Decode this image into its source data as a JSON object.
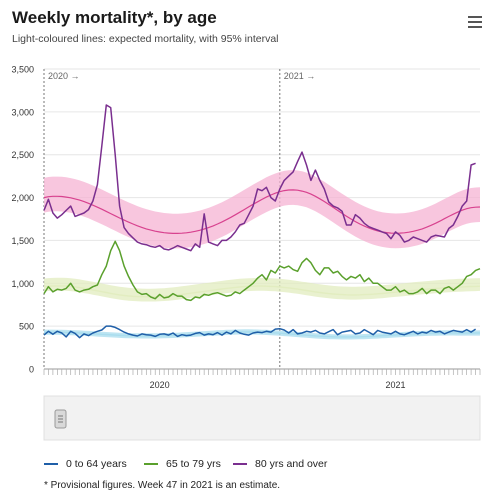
{
  "header": {
    "title": "Weekly mortality*, by age",
    "subtitle": "Light-coloured lines: expected mortality, with 95% interval",
    "menu_icon": "hamburger-menu-icon"
  },
  "footnote": "* Provisional figures. Week 47 in 2021 is an estimate.",
  "chart_data": {
    "type": "line",
    "x_unit": "week",
    "x_range": [
      1,
      99
    ],
    "period_markers": [
      {
        "label": "2020 →",
        "week": 1
      },
      {
        "label": "2021 →",
        "week": 54
      }
    ],
    "x_category_labels": [
      {
        "label": "2020",
        "center_week": 27
      },
      {
        "label": "2021",
        "center_week": 80
      }
    ],
    "y_ticks": [
      0,
      500,
      1000,
      1500,
      2000,
      2500,
      3000,
      3500
    ],
    "y_tick_labels": [
      "0",
      "500",
      "1,000",
      "1,500",
      "2,000",
      "2,500",
      "3,000",
      "3,500"
    ],
    "ylim": [
      0,
      3500
    ],
    "grid": true,
    "legend_position": "bottom",
    "series": [
      {
        "name": "0 to 64 years",
        "color": "#1f5fa8",
        "observed_start_week": 1,
        "observed": [
          395,
          440,
          405,
          440,
          420,
          375,
          440,
          415,
          365,
          410,
          390,
          420,
          440,
          455,
          500,
          500,
          485,
          460,
          430,
          410,
          395,
          385,
          410,
          400,
          395,
          380,
          405,
          410,
          395,
          420,
          380,
          400,
          390,
          395,
          415,
          425,
          395,
          410,
          400,
          425,
          395,
          430,
          410,
          450,
          420,
          405,
          395,
          420,
          430,
          425,
          440,
          430,
          465,
          470,
          455,
          420,
          460,
          410,
          420,
          440,
          430,
          450,
          420,
          410,
          435,
          460,
          400,
          430,
          440,
          450,
          410,
          420,
          460,
          430,
          400,
          450,
          430,
          420,
          410,
          440,
          410,
          400,
          420,
          440,
          410,
          430,
          420,
          450,
          430,
          440,
          410,
          430,
          450,
          440,
          430,
          460,
          430,
          465
        ],
        "expected_start_week": 1,
        "expected": [
          430,
          430,
          430,
          429,
          428,
          426,
          424,
          422,
          420,
          417,
          414,
          411,
          408,
          405,
          402,
          399,
          396,
          393,
          391,
          389,
          388,
          387,
          386,
          386,
          386,
          386,
          387,
          388,
          390,
          392,
          394,
          397,
          400,
          403,
          406,
          409,
          412,
          415,
          418,
          421,
          424,
          427,
          429,
          431,
          432,
          433,
          433,
          432,
          431,
          429,
          427,
          424,
          421,
          418,
          414,
          410,
          406,
          402,
          398,
          394,
          390,
          386,
          383,
          380,
          378,
          376,
          375,
          374,
          374,
          374,
          375,
          376,
          378,
          380,
          382,
          385,
          388,
          391,
          394,
          397,
          400,
          403,
          406,
          409,
          412,
          414,
          416,
          418,
          419,
          420,
          421,
          421,
          421,
          420,
          420,
          420,
          420,
          420,
          420
        ],
        "band_low_offset": 30,
        "band_high_offset": 30,
        "band_color": "#a8dced"
      },
      {
        "name": "65 to 79 yrs",
        "color": "#5aa02c",
        "observed_start_week": 1,
        "observed": [
          880,
          960,
          900,
          930,
          920,
          940,
          1000,
          920,
          900,
          920,
          930,
          960,
          980,
          1100,
          1200,
          1380,
          1490,
          1380,
          1200,
          1080,
          980,
          900,
          870,
          880,
          840,
          820,
          870,
          830,
          840,
          880,
          850,
          850,
          810,
          800,
          840,
          830,
          870,
          860,
          880,
          890,
          870,
          850,
          860,
          900,
          880,
          920,
          960,
          1000,
          1060,
          1100,
          1040,
          1150,
          1120,
          1200,
          1180,
          1200,
          1160,
          1140,
          1240,
          1290,
          1240,
          1150,
          1100,
          1180,
          1180,
          1120,
          1140,
          1080,
          1040,
          1080,
          1060,
          1100,
          1020,
          1060,
          1000,
          1000,
          960,
          920,
          920,
          960,
          900,
          920,
          880,
          880,
          900,
          940,
          880,
          920,
          920,
          880,
          940,
          960,
          920,
          960,
          1000,
          1080,
          1100,
          1150,
          1170
        ],
        "expected_start_week": 1,
        "expected": [
          960,
          965,
          968,
          970,
          970,
          968,
          964,
          958,
          950,
          941,
          932,
          922,
          912,
          902,
          892,
          882,
          873,
          865,
          858,
          852,
          848,
          845,
          843,
          842,
          842,
          843,
          845,
          848,
          852,
          857,
          863,
          870,
          877,
          884,
          891,
          898,
          905,
          912,
          919,
          926,
          933,
          940,
          946,
          952,
          957,
          961,
          964,
          966,
          967,
          967,
          966,
          964,
          961,
          957,
          952,
          946,
          939,
          932,
          924,
          916,
          908,
          900,
          893,
          886,
          880,
          875,
          871,
          868,
          866,
          865,
          865,
          866,
          868,
          870,
          873,
          877,
          881,
          886,
          891,
          896,
          901,
          906,
          911,
          916,
          921,
          926,
          931,
          935,
          939,
          943,
          947,
          950,
          953,
          956,
          958,
          960,
          962,
          964,
          966
        ],
        "band_low_offset": 55,
        "band_high_offset": 95,
        "band_color": "#e2ecbf"
      },
      {
        "name": "80 yrs and over",
        "color": "#7a2f8f",
        "observed_start_week": 1,
        "observed": [
          1850,
          1980,
          1820,
          1760,
          1800,
          1850,
          1900,
          1780,
          1800,
          1820,
          1860,
          1960,
          2150,
          2600,
          3080,
          3050,
          2500,
          1900,
          1650,
          1580,
          1530,
          1480,
          1460,
          1450,
          1430,
          1420,
          1440,
          1400,
          1390,
          1410,
          1440,
          1420,
          1400,
          1380,
          1460,
          1420,
          1810,
          1480,
          1460,
          1440,
          1500,
          1500,
          1540,
          1600,
          1680,
          1700,
          1800,
          1900,
          2100,
          2080,
          2120,
          2000,
          1960,
          2100,
          2200,
          2250,
          2300,
          2420,
          2530,
          2380,
          2200,
          2320,
          2200,
          2100,
          1950,
          1900,
          1880,
          1840,
          1680,
          1680,
          1800,
          1760,
          1700,
          1660,
          1640,
          1620,
          1600,
          1580,
          1520,
          1600,
          1560,
          1480,
          1500,
          1540,
          1520,
          1500,
          1480,
          1540,
          1560,
          1550,
          1540,
          1640,
          1680,
          1780,
          1900,
          1960,
          2380,
          2400
        ],
        "expected_start_week": 1,
        "expected": [
          2000,
          2010,
          2015,
          2015,
          2012,
          2006,
          1997,
          1985,
          1970,
          1953,
          1933,
          1911,
          1888,
          1864,
          1839,
          1813,
          1787,
          1762,
          1737,
          1714,
          1692,
          1671,
          1652,
          1635,
          1620,
          1608,
          1598,
          1590,
          1585,
          1582,
          1582,
          1584,
          1589,
          1596,
          1606,
          1618,
          1633,
          1650,
          1670,
          1692,
          1716,
          1742,
          1770,
          1799,
          1829,
          1860,
          1891,
          1921,
          1951,
          1979,
          2006,
          2030,
          2051,
          2068,
          2081,
          2088,
          2090,
          2086,
          2076,
          2061,
          2040,
          2015,
          1986,
          1954,
          1920,
          1885,
          1850,
          1815,
          1782,
          1750,
          1720,
          1692,
          1667,
          1645,
          1626,
          1611,
          1599,
          1591,
          1586,
          1584,
          1585,
          1589,
          1596,
          1606,
          1619,
          1635,
          1654,
          1676,
          1700,
          1726,
          1753,
          1780,
          1806,
          1831,
          1853,
          1870,
          1882,
          1888,
          1890
        ],
        "band_low_offset": 175,
        "band_high_offset": 230,
        "band_color": "#f5b3d3",
        "expected_color": "#d63b8a"
      }
    ]
  }
}
